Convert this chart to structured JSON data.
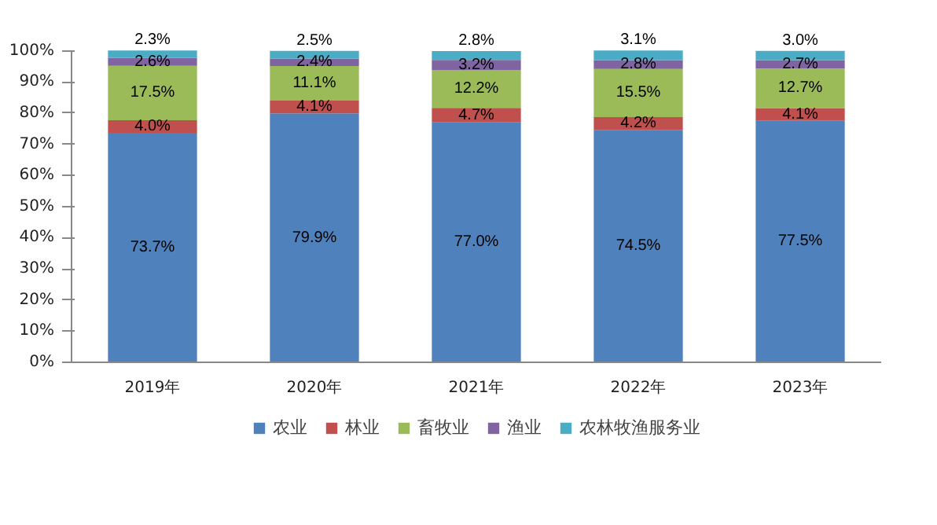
{
  "chart_data": {
    "type": "bar",
    "stacked": true,
    "grid": false,
    "data_labels": true,
    "legend": "bottom",
    "categories": [
      "2019年",
      "2020年",
      "2021年",
      "2022年",
      "2023年"
    ],
    "ylim": [
      0,
      100
    ],
    "yticks": [
      {
        "value": 0,
        "label": "0%"
      },
      {
        "value": 10,
        "label": "10%"
      },
      {
        "value": 20,
        "label": "20%"
      },
      {
        "value": 30,
        "label": "30%"
      },
      {
        "value": 40,
        "label": "40%"
      },
      {
        "value": 50,
        "label": "50%"
      },
      {
        "value": 60,
        "label": "60%"
      },
      {
        "value": 70,
        "label": "70%"
      },
      {
        "value": 80,
        "label": "80%"
      },
      {
        "value": 90,
        "label": "90%"
      },
      {
        "value": 100,
        "label": "100%"
      }
    ],
    "series": [
      {
        "name": "农业",
        "color": "#4f81bd",
        "values": [
          73.7,
          79.9,
          77.0,
          74.5,
          77.5
        ],
        "value_labels": [
          "73.7%",
          "79.9%",
          "77.0%",
          "74.5%",
          "77.5%"
        ]
      },
      {
        "name": "林业",
        "color": "#c0504d",
        "values": [
          4.0,
          4.1,
          4.7,
          4.2,
          4.1
        ],
        "value_labels": [
          "4.0%",
          "4.1%",
          "4.7%",
          "4.2%",
          "4.1%"
        ]
      },
      {
        "name": "畜牧业",
        "color": "#9bbb59",
        "values": [
          17.5,
          11.1,
          12.2,
          15.5,
          12.7
        ],
        "value_labels": [
          "17.5%",
          "11.1%",
          "12.2%",
          "15.5%",
          "12.7%"
        ]
      },
      {
        "name": "渔业",
        "color": "#8064a2",
        "values": [
          2.6,
          2.4,
          3.2,
          2.8,
          2.7
        ],
        "value_labels": [
          "2.6%",
          "2.4%",
          "3.2%",
          "2.8%",
          "2.7%"
        ]
      },
      {
        "name": "农林牧渔服务业",
        "color": "#4bacc6",
        "values": [
          2.3,
          2.5,
          2.8,
          3.1,
          3.0
        ],
        "value_labels": [
          "2.3%",
          "2.5%",
          "2.8%",
          "3.1%",
          "3.0%"
        ]
      }
    ]
  }
}
